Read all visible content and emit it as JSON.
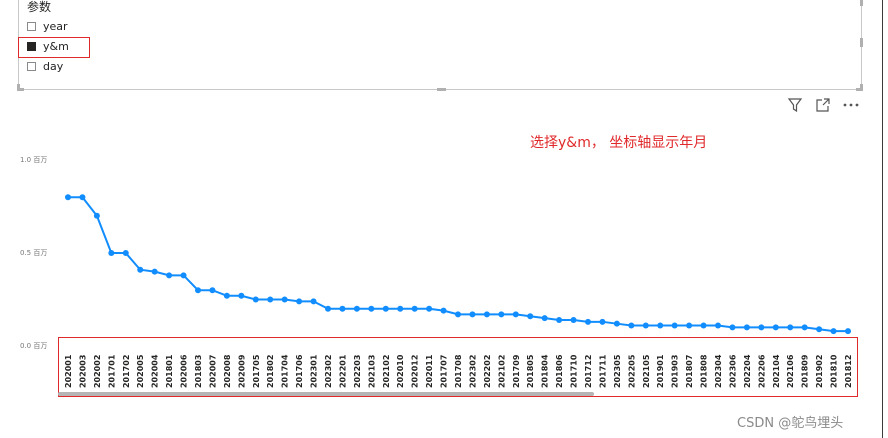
{
  "slicer": {
    "title": "参数",
    "options": [
      {
        "label": "year",
        "checked": false
      },
      {
        "label": "y&m",
        "checked": true
      },
      {
        "label": "day",
        "checked": false
      }
    ]
  },
  "toolbar": {
    "icons": [
      "filter-icon",
      "focus-mode-icon",
      "more-options-icon"
    ]
  },
  "annotation": "选择y&m， 坐标轴显示年月",
  "watermark": "CSDN @鸵鸟埋头",
  "colors": {
    "line": "#118dff",
    "highlight": "#e0292b"
  },
  "chart_data": {
    "type": "line",
    "y_ticks": [
      "1.0 百万",
      "0.5 百万",
      "0.0 百万"
    ],
    "ylim": [
      0,
      1.0
    ],
    "categories": [
      "202001",
      "202003",
      "202002",
      "201701",
      "201702",
      "202005",
      "202004",
      "201801",
      "202006",
      "201803",
      "202007",
      "202008",
      "202009",
      "201705",
      "201802",
      "201704",
      "201706",
      "202301",
      "202302",
      "202201",
      "202203",
      "202103",
      "202102",
      "202010",
      "202012",
      "202011",
      "201707",
      "201708",
      "202302",
      "202202",
      "202102",
      "201709",
      "201805",
      "201804",
      "201806",
      "201710",
      "201712",
      "201711",
      "202305",
      "202205",
      "202105",
      "201901",
      "201903",
      "201807",
      "201808",
      "202304",
      "202306",
      "202204",
      "202206",
      "202104",
      "202106",
      "201809",
      "201902",
      "201810",
      "201812"
    ],
    "values": [
      0.8,
      0.8,
      0.7,
      0.5,
      0.5,
      0.41,
      0.4,
      0.38,
      0.38,
      0.3,
      0.3,
      0.27,
      0.27,
      0.25,
      0.25,
      0.25,
      0.24,
      0.24,
      0.2,
      0.2,
      0.2,
      0.2,
      0.2,
      0.2,
      0.2,
      0.2,
      0.19,
      0.17,
      0.17,
      0.17,
      0.17,
      0.17,
      0.16,
      0.15,
      0.14,
      0.14,
      0.13,
      0.13,
      0.12,
      0.11,
      0.11,
      0.11,
      0.11,
      0.11,
      0.11,
      0.11,
      0.1,
      0.1,
      0.1,
      0.1,
      0.1,
      0.1,
      0.09,
      0.08,
      0.08
    ],
    "grid": false,
    "legend": "none"
  }
}
